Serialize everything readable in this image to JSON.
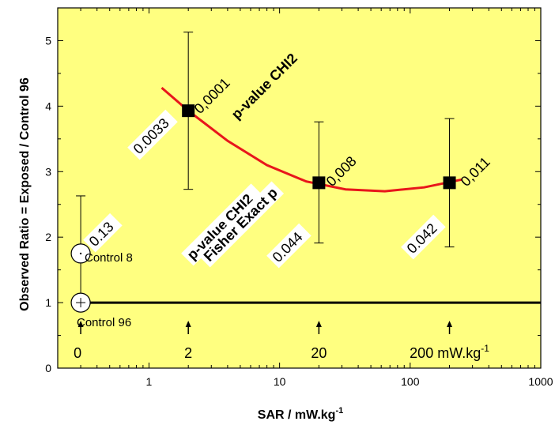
{
  "chart_data": {
    "type": "scatter",
    "xscale": "log",
    "xlabel": "SAR / mW.kg",
    "xlabel_sup": "-1",
    "ylabel": "Observed Ratio = Exposed / Control 96",
    "xlim": [
      0.2,
      1000
    ],
    "ylim": [
      0,
      5.5
    ],
    "x_ticks": [
      1,
      10,
      100,
      1000
    ],
    "x_tick_labels": [
      "1",
      "10",
      "100",
      "1000"
    ],
    "y_ticks": [
      0,
      1,
      2,
      3,
      4,
      5
    ],
    "y_tick_labels": [
      "0",
      "1",
      "2",
      "3",
      "4",
      "5"
    ],
    "background_color": "#ffff80",
    "fit_color": "#e8161b",
    "grid": false,
    "controls": [
      {
        "label": "Control 8",
        "x": 0.3,
        "y": 1.75,
        "err_low": 0.87,
        "err_high": 2.63
      },
      {
        "label": "Control 96",
        "x": 0.3,
        "y": 1.0
      }
    ],
    "points": [
      {
        "x": 2,
        "y": 3.93,
        "err_low": 2.73,
        "err_high": 5.13,
        "p_chi2": "0,0001",
        "p_fisher": "0.0033"
      },
      {
        "x": 20,
        "y": 2.83,
        "err_low": 1.91,
        "err_high": 3.76,
        "p_chi2": "0,008",
        "p_fisher": "0.044"
      },
      {
        "x": 200,
        "y": 2.83,
        "err_low": 1.85,
        "err_high": 3.81,
        "p_chi2": "0,011",
        "p_fisher": "0.042"
      }
    ],
    "control_p": "0.13",
    "reference_line_y": 1.0,
    "fit_curve": [
      {
        "x": 1.25,
        "y": 4.28
      },
      {
        "x": 2,
        "y": 3.93
      },
      {
        "x": 4,
        "y": 3.47
      },
      {
        "x": 8,
        "y": 3.1
      },
      {
        "x": 16,
        "y": 2.85
      },
      {
        "x": 32,
        "y": 2.73
      },
      {
        "x": 64,
        "y": 2.7
      },
      {
        "x": 128,
        "y": 2.76
      },
      {
        "x": 250,
        "y": 2.88
      }
    ],
    "arrow_labels": [
      {
        "x": 0.3,
        "text": "0"
      },
      {
        "x": 2,
        "text": "2"
      },
      {
        "x": 20,
        "text": "20"
      },
      {
        "x": 200,
        "text": "200 mW.kg",
        "sup": "-1"
      }
    ],
    "legend_labels": {
      "chi2_top": "p-value CHI2",
      "chi2_mid": "p-value CHI2",
      "fisher": "Fisher Exact p"
    }
  }
}
